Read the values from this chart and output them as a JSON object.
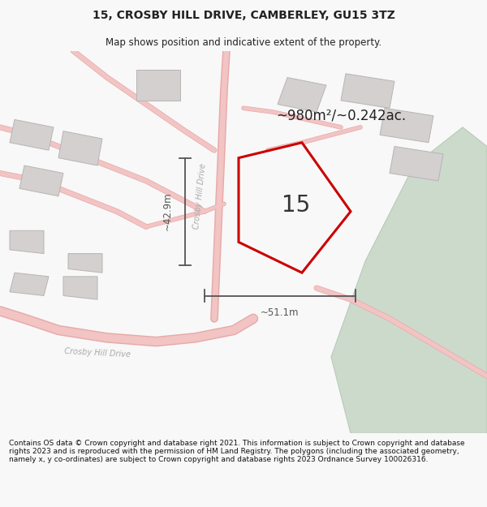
{
  "title": "15, CROSBY HILL DRIVE, CAMBERLEY, GU15 3TZ",
  "subtitle": "Map shows position and indicative extent of the property.",
  "footer": "Contains OS data © Crown copyright and database right 2021. This information is subject to Crown copyright and database rights 2023 and is reproduced with the permission of HM Land Registry. The polygons (including the associated geometry, namely x, y co-ordinates) are subject to Crown copyright and database rights 2023 Ordnance Survey 100026316.",
  "bg_color": "#f8f8f8",
  "map_bg": "#eeecec",
  "road_color": "#f2c4c4",
  "road_border_color": "#e8a8a8",
  "building_color": "#d4d0d0",
  "building_border": "#b8b4b4",
  "green_color": "#ccdacc",
  "green_border": "#b8cab8",
  "plot_color": "#cc0000",
  "plot_fill": "#f8f8f8",
  "plot_label": "15",
  "area_label": "~980m²/~0.242ac.",
  "dim_h_label": "~42.9m",
  "dim_w_label": "~51.1m",
  "road_label_chd": "Crosby Hill Drive",
  "road_label_ch": "Crosby Hill Drive",
  "title_color": "#222222",
  "subtitle_color": "#222222",
  "dim_color": "#555555",
  "road_label_color": "#aaaaaa",
  "footer_color": "#111111",
  "figsize": [
    6.0,
    6.25
  ],
  "dpi": 100,
  "title_fontsize": 10,
  "subtitle_fontsize": 8.5,
  "footer_fontsize": 6.5,
  "plot_label_fontsize": 20,
  "area_label_fontsize": 12,
  "dim_fontsize": 8.5,
  "road_label_fontsize": 7
}
